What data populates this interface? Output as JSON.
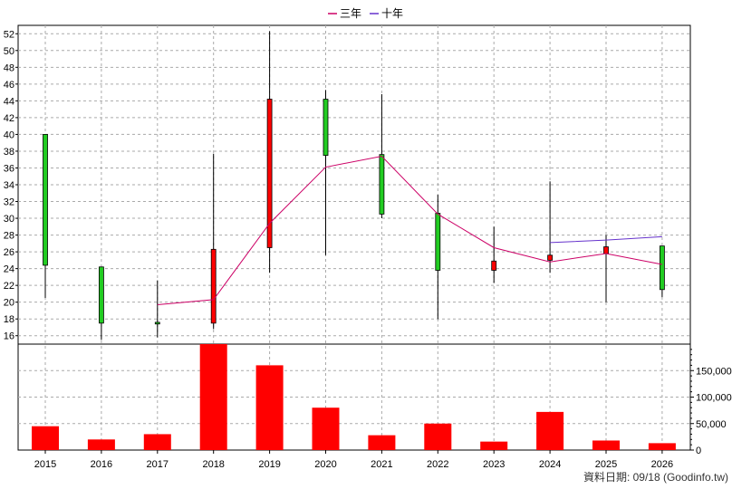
{
  "chart_data": {
    "type": "candlestick+bar",
    "legend": [
      {
        "name": "三年",
        "color": "#cc0066"
      },
      {
        "name": "十年",
        "color": "#6633cc"
      }
    ],
    "categories": [
      "2015",
      "2016",
      "2017",
      "2018",
      "2019",
      "2020",
      "2021",
      "2022",
      "2023",
      "2024",
      "2025",
      "2026"
    ],
    "price_axis": {
      "min": 15,
      "max": 53,
      "ticks": [
        16,
        18,
        20,
        22,
        24,
        26,
        28,
        30,
        32,
        34,
        36,
        38,
        40,
        42,
        44,
        46,
        48,
        50,
        52
      ]
    },
    "volume_axis": {
      "min": 0,
      "max": 200000,
      "ticks": [
        0,
        50000,
        100000,
        150000
      ],
      "tick_labels": [
        "0",
        "50,000",
        "100,000",
        "150,000"
      ]
    },
    "candles": [
      {
        "year": "2015",
        "open": 40.0,
        "high": 40.0,
        "low": 20.5,
        "close": 24.4
      },
      {
        "year": "2016",
        "open": 24.2,
        "high": 24.2,
        "low": 15.5,
        "close": 17.5
      },
      {
        "year": "2017",
        "open": 17.6,
        "high": 22.6,
        "low": 15.8,
        "close": 17.4
      },
      {
        "year": "2018",
        "open": 17.5,
        "high": 37.7,
        "low": 16.8,
        "close": 26.3
      },
      {
        "year": "2019",
        "open": 26.5,
        "high": 52.3,
        "low": 23.5,
        "close": 44.2
      },
      {
        "year": "2020",
        "open": 44.2,
        "high": 45.3,
        "low": 25.6,
        "close": 37.5
      },
      {
        "year": "2021",
        "open": 37.6,
        "high": 44.8,
        "low": 30.0,
        "close": 30.5
      },
      {
        "year": "2022",
        "open": 30.6,
        "high": 32.8,
        "low": 18.0,
        "close": 23.8
      },
      {
        "year": "2023",
        "open": 23.8,
        "high": 29.0,
        "low": 22.3,
        "close": 24.9
      },
      {
        "year": "2024",
        "open": 25.0,
        "high": 34.4,
        "low": 23.5,
        "close": 25.6
      },
      {
        "year": "2025",
        "open": 25.8,
        "high": 28.0,
        "low": 20.0,
        "close": 26.6
      },
      {
        "year": "2026",
        "open": 26.7,
        "high": 26.7,
        "low": 20.6,
        "close": 21.5
      }
    ],
    "series": [
      {
        "name": "三年",
        "color": "#cc0066",
        "values": [
          null,
          null,
          19.7,
          20.3,
          29.4,
          36.1,
          37.4,
          30.5,
          26.5,
          24.8,
          25.8,
          24.5
        ]
      },
      {
        "name": "十年",
        "color": "#6633cc",
        "values": [
          null,
          null,
          null,
          null,
          null,
          null,
          null,
          null,
          null,
          27.1,
          27.4,
          27.8
        ]
      }
    ],
    "volume": [
      45000,
      20000,
      30000,
      200000,
      160000,
      80000,
      28000,
      50000,
      16000,
      72000,
      18000,
      13000
    ],
    "grid": true
  },
  "footer": {
    "credit": "資料日期: 09/18 (Goodinfo.tw)"
  },
  "colors": {
    "up": "#ff0000",
    "down": "#22cc22",
    "volume": "#ff0000",
    "grid": "#aaaaaa"
  }
}
